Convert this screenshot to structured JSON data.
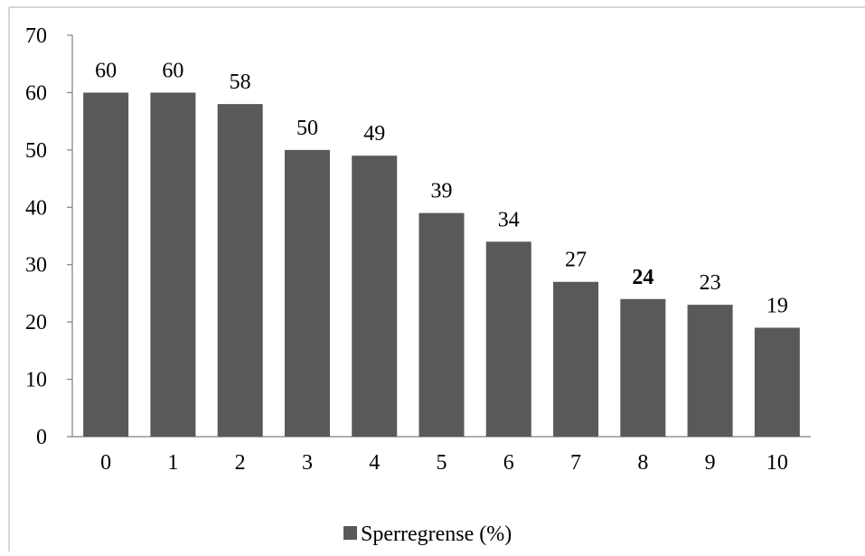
{
  "chart_data": {
    "type": "bar",
    "categories": [
      "0",
      "1",
      "2",
      "3",
      "4",
      "5",
      "6",
      "7",
      "8",
      "9",
      "10"
    ],
    "series": [
      {
        "name": "Sperregrense (%)",
        "values": [
          60,
          60,
          58,
          50,
          49,
          39,
          34,
          27,
          24,
          23,
          19
        ],
        "color": "#595959"
      }
    ],
    "data_labels": [
      "60",
      "60",
      "58",
      "50",
      "49",
      "39",
      "34",
      "27",
      "24",
      "23",
      "19"
    ],
    "highlighted_label_index": 8,
    "y_ticks": [
      "0",
      "10",
      "20",
      "30",
      "40",
      "50",
      "60",
      "70"
    ],
    "ylim": [
      0,
      70
    ],
    "title": "",
    "xlabel": "",
    "ylabel": "",
    "grid": false,
    "legend_position": "bottom"
  }
}
